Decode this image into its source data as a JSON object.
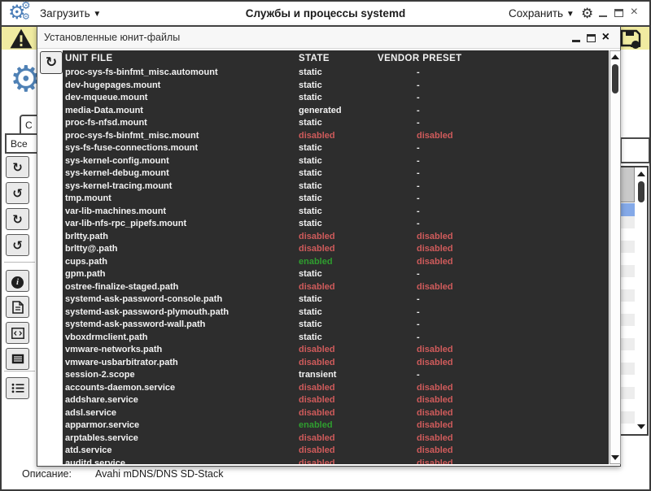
{
  "titlebar": {
    "load_label": "Загрузить",
    "title": "Службы и процессы systemd",
    "save_label": "Сохранить"
  },
  "background": {
    "tab_label": "С",
    "filter_value": "Все",
    "toolbar_icons": [
      "refresh-icon",
      "history-undo-icon",
      "redo-icon",
      "undo-icon",
      "info-icon",
      "document-icon",
      "code-icon",
      "properties-icon",
      "list-icon"
    ],
    "description_label": "Описание:",
    "description_value": "Avahi mDNS/DNS SD-Stack"
  },
  "dialog": {
    "title": "Установленные юнит-файлы",
    "columns": {
      "unit": "UNIT FILE",
      "state": "STATE",
      "vendor": "VENDOR PRESET"
    },
    "rows": [
      [
        "proc-sys-fs-binfmt_misc.automount",
        "static",
        "-"
      ],
      [
        "dev-hugepages.mount",
        "static",
        "-"
      ],
      [
        "dev-mqueue.mount",
        "static",
        "-"
      ],
      [
        "media-Data.mount",
        "generated",
        "-"
      ],
      [
        "proc-fs-nfsd.mount",
        "static",
        "-"
      ],
      [
        "proc-sys-fs-binfmt_misc.mount",
        "disabled",
        "disabled"
      ],
      [
        "sys-fs-fuse-connections.mount",
        "static",
        "-"
      ],
      [
        "sys-kernel-config.mount",
        "static",
        "-"
      ],
      [
        "sys-kernel-debug.mount",
        "static",
        "-"
      ],
      [
        "sys-kernel-tracing.mount",
        "static",
        "-"
      ],
      [
        "tmp.mount",
        "static",
        "-"
      ],
      [
        "var-lib-machines.mount",
        "static",
        "-"
      ],
      [
        "var-lib-nfs-rpc_pipefs.mount",
        "static",
        "-"
      ],
      [
        "brltty.path",
        "disabled",
        "disabled"
      ],
      [
        "brltty@.path",
        "disabled",
        "disabled"
      ],
      [
        "cups.path",
        "enabled",
        "disabled"
      ],
      [
        "gpm.path",
        "static",
        "-"
      ],
      [
        "ostree-finalize-staged.path",
        "disabled",
        "disabled"
      ],
      [
        "systemd-ask-password-console.path",
        "static",
        "-"
      ],
      [
        "systemd-ask-password-plymouth.path",
        "static",
        "-"
      ],
      [
        "systemd-ask-password-wall.path",
        "static",
        "-"
      ],
      [
        "vboxdrmclient.path",
        "static",
        "-"
      ],
      [
        "vmware-networks.path",
        "disabled",
        "disabled"
      ],
      [
        "vmware-usbarbitrator.path",
        "disabled",
        "disabled"
      ],
      [
        "session-2.scope",
        "transient",
        "-"
      ],
      [
        "accounts-daemon.service",
        "disabled",
        "disabled"
      ],
      [
        "addshare.service",
        "disabled",
        "disabled"
      ],
      [
        "adsl.service",
        "disabled",
        "disabled"
      ],
      [
        "apparmor.service",
        "enabled",
        "disabled"
      ],
      [
        "arptables.service",
        "disabled",
        "disabled"
      ],
      [
        "atd.service",
        "disabled",
        "disabled"
      ],
      [
        "auditd.service",
        "disabled",
        "disabled"
      ]
    ]
  },
  "colors": {
    "state_enabled": "#2f9e2f",
    "state_disabled": "#cf5b5b",
    "table_bg": "#2d2d2d",
    "warning_bar": "#f0eba1",
    "accent_blue": "#4a7db8",
    "selected_row": "#84a9e8"
  }
}
